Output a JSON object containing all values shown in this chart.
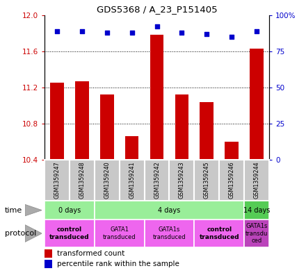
{
  "title": "GDS5368 / A_23_P151405",
  "samples": [
    "GSM1359247",
    "GSM1359248",
    "GSM1359240",
    "GSM1359241",
    "GSM1359242",
    "GSM1359243",
    "GSM1359245",
    "GSM1359246",
    "GSM1359244"
  ],
  "red_values": [
    11.25,
    11.27,
    11.12,
    10.66,
    11.78,
    11.12,
    11.04,
    10.6,
    11.63
  ],
  "blue_values": [
    89,
    89,
    88,
    88,
    92,
    88,
    87,
    85,
    89
  ],
  "ymin": 10.4,
  "ymax": 12.0,
  "yticks_left": [
    10.4,
    10.8,
    11.2,
    11.6
  ],
  "ytick_top": 12.0,
  "yticks_right": [
    0,
    25,
    50,
    75,
    100
  ],
  "time_groups": [
    {
      "label": "0 days",
      "start": 0,
      "end": 2,
      "color": "#99EE99"
    },
    {
      "label": "4 days",
      "start": 2,
      "end": 8,
      "color": "#99EE99"
    },
    {
      "label": "14 days",
      "start": 8,
      "end": 9,
      "color": "#55CC55"
    }
  ],
  "protocol_groups": [
    {
      "label": "control\ntransduced",
      "start": 0,
      "end": 2,
      "color": "#EE66EE",
      "bold": true
    },
    {
      "label": "GATA1\ntransduced",
      "start": 2,
      "end": 4,
      "color": "#EE66EE",
      "bold": false
    },
    {
      "label": "GATA1s\ntransduced",
      "start": 4,
      "end": 6,
      "color": "#EE66EE",
      "bold": false
    },
    {
      "label": "control\ntransduced",
      "start": 6,
      "end": 8,
      "color": "#EE66EE",
      "bold": true
    },
    {
      "label": "GATA1s\ntransdu\nced",
      "start": 8,
      "end": 9,
      "color": "#BB44BB",
      "bold": false
    }
  ],
  "bar_color": "#CC0000",
  "dot_color": "#0000CC",
  "grid_color": "#000000",
  "left_axis_color": "#CC0000",
  "right_axis_color": "#0000CC",
  "sample_bg": "#C8C8C8",
  "sample_edge": "#FFFFFF"
}
